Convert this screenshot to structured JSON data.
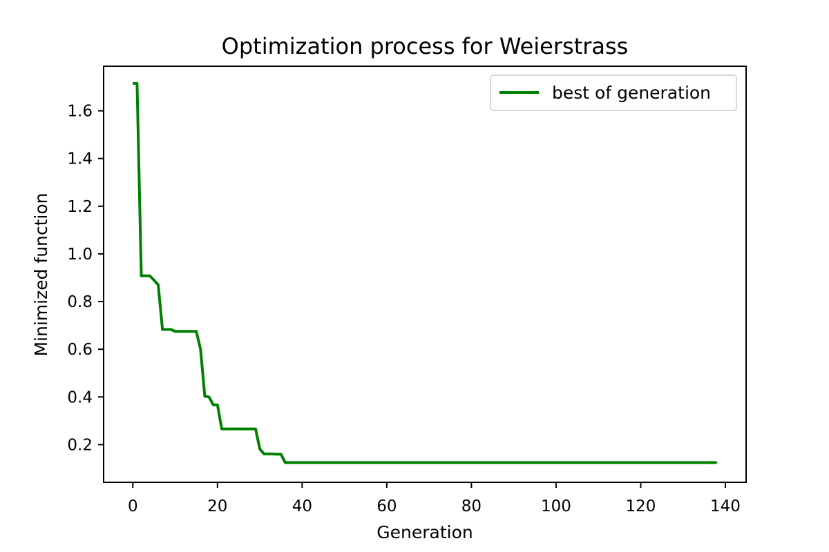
{
  "chart_data": {
    "type": "line",
    "title": "Optimization process for Weierstrass",
    "xlabel": "Generation",
    "ylabel": "Minimized function",
    "xlim": [
      -6.9,
      144.9
    ],
    "ylim": [
      0.042,
      1.787
    ],
    "x_ticks": [
      0,
      20,
      40,
      60,
      80,
      100,
      120,
      140
    ],
    "y_ticks": [
      0.2,
      0.4,
      0.6,
      0.8,
      1.0,
      1.2,
      1.4,
      1.6
    ],
    "x_tick_labels": [
      "0",
      "20",
      "40",
      "60",
      "80",
      "100",
      "120",
      "140"
    ],
    "y_tick_labels": [
      "0.2",
      "0.4",
      "0.6",
      "0.8",
      "1.0",
      "1.2",
      "1.4",
      "1.6"
    ],
    "grid": false,
    "legend_position": "upper right",
    "series": [
      {
        "name": "best of generation",
        "color": "#008000",
        "x": [
          0,
          1,
          2,
          3,
          4,
          5,
          6,
          7,
          8,
          9,
          10,
          11,
          12,
          13,
          14,
          15,
          16,
          17,
          18,
          19,
          20,
          21,
          22,
          23,
          24,
          25,
          26,
          27,
          28,
          29,
          30,
          31,
          32,
          33,
          34,
          35,
          36,
          138
        ],
        "y": [
          1.715,
          1.715,
          0.908,
          0.908,
          0.908,
          0.89,
          0.87,
          0.683,
          0.683,
          0.683,
          0.675,
          0.675,
          0.675,
          0.675,
          0.675,
          0.675,
          0.6,
          0.403,
          0.4,
          0.367,
          0.367,
          0.266,
          0.266,
          0.266,
          0.266,
          0.266,
          0.266,
          0.266,
          0.266,
          0.266,
          0.182,
          0.161,
          0.161,
          0.161,
          0.16,
          0.16,
          0.125,
          0.125
        ]
      }
    ]
  }
}
